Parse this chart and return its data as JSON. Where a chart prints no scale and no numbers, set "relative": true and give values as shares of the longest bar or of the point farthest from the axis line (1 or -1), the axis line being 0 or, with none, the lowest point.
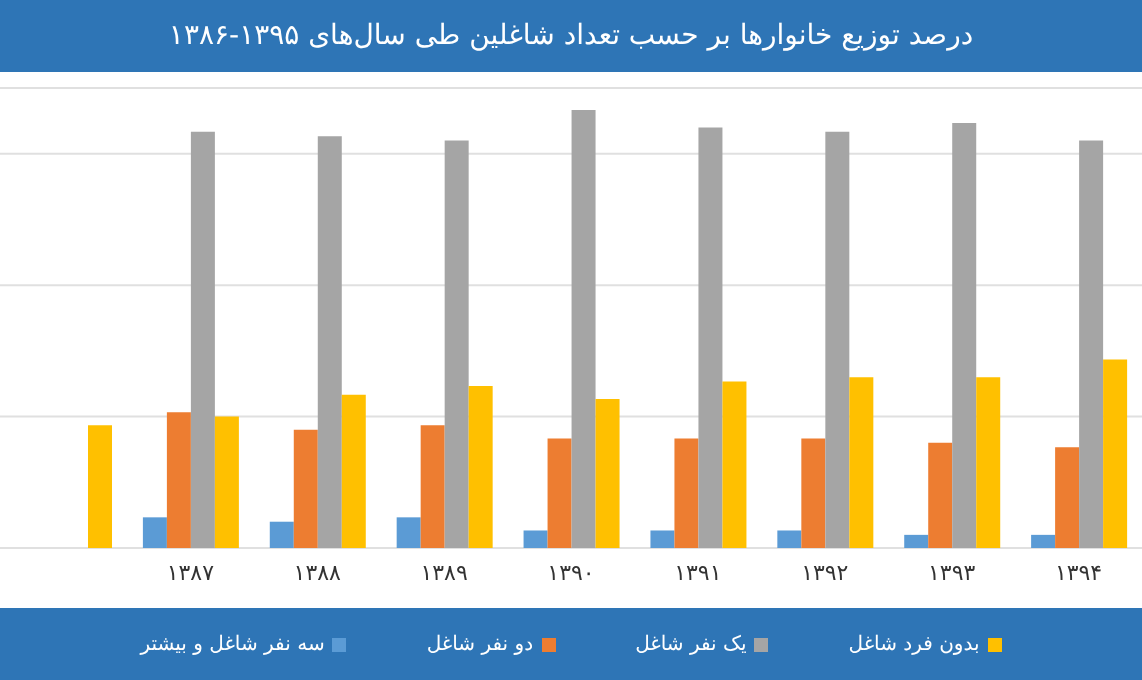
{
  "chart_data": {
    "type": "bar",
    "title": "درصد توزیع خانوارها بر حسب تعداد شاغلین طی سال‌های ۱۳۹۵-۱۳۸۶",
    "relative": true,
    "grid": "y",
    "legend": "bottom",
    "categories": [
      null,
      "۱۳۸۷",
      "۱۳۸۸",
      "۱۳۸۹",
      "۱۳۹۰",
      "۱۳۹۱",
      "۱۳۹۲",
      "۱۳۹۳",
      "۱۳۹۴"
    ],
    "series": [
      {
        "name": "سه نفر شاغل و بیشتر",
        "color": "#5b9bd5",
        "values": [
          null,
          0.07,
          0.06,
          0.07,
          0.04,
          0.04,
          0.04,
          0.03,
          0.03
        ]
      },
      {
        "name": "دو نفر شاغل",
        "color": "#ed7d31",
        "values": [
          null,
          0.31,
          0.27,
          0.28,
          0.25,
          0.25,
          0.25,
          0.24,
          0.23
        ]
      },
      {
        "name": "یک نفر شاغل",
        "color": "#a5a5a5",
        "values": [
          null,
          0.95,
          0.94,
          0.93,
          1,
          0.96,
          0.95,
          0.97,
          0.93
        ]
      },
      {
        "name": "بدون فرد شاغل",
        "color": "#ffc000",
        "values": [
          0.28,
          0.3,
          0.35,
          0.37,
          0.34,
          0.38,
          0.39,
          0.39,
          0.43
        ]
      }
    ]
  }
}
